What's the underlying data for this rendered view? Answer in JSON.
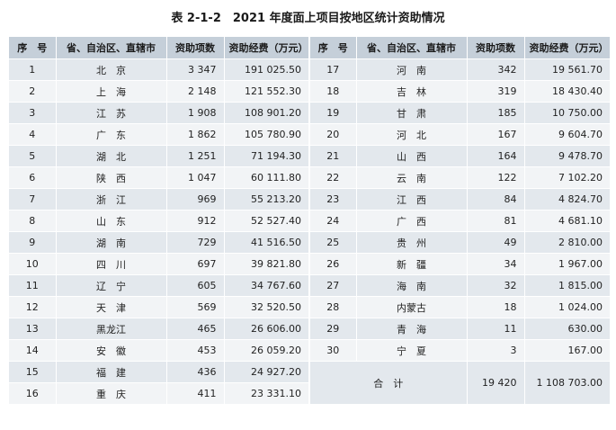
{
  "title": "表 2-1-2　2021 年度面上项目按地区统计资助情况",
  "headers": {
    "seq": "序　号",
    "province": "省、自治区、直辖市",
    "count": "资助项数",
    "funding": "资助经费（万元）"
  },
  "left_rows": [
    {
      "seq": "1",
      "province": "北　京",
      "count": "3 347",
      "funding": "191 025.50"
    },
    {
      "seq": "2",
      "province": "上　海",
      "count": "2 148",
      "funding": "121 552.30"
    },
    {
      "seq": "3",
      "province": "江　苏",
      "count": "1 908",
      "funding": "108 901.20"
    },
    {
      "seq": "4",
      "province": "广　东",
      "count": "1 862",
      "funding": "105 780.90"
    },
    {
      "seq": "5",
      "province": "湖　北",
      "count": "1 251",
      "funding": "71 194.30"
    },
    {
      "seq": "6",
      "province": "陕　西",
      "count": "1 047",
      "funding": "60 111.80"
    },
    {
      "seq": "7",
      "province": "浙　江",
      "count": "969",
      "funding": "55 213.20"
    },
    {
      "seq": "8",
      "province": "山　东",
      "count": "912",
      "funding": "52 527.40"
    },
    {
      "seq": "9",
      "province": "湖　南",
      "count": "729",
      "funding": "41 516.50"
    },
    {
      "seq": "10",
      "province": "四　川",
      "count": "697",
      "funding": "39 821.80"
    },
    {
      "seq": "11",
      "province": "辽　宁",
      "count": "605",
      "funding": "34 767.60"
    },
    {
      "seq": "12",
      "province": "天　津",
      "count": "569",
      "funding": "32 520.50"
    },
    {
      "seq": "13",
      "province": "黑龙江",
      "count": "465",
      "funding": "26 606.00"
    },
    {
      "seq": "14",
      "province": "安　徽",
      "count": "453",
      "funding": "26 059.20"
    },
    {
      "seq": "15",
      "province": "福　建",
      "count": "436",
      "funding": "24 927.20"
    },
    {
      "seq": "16",
      "province": "重　庆",
      "count": "411",
      "funding": "23 331.10"
    }
  ],
  "right_rows": [
    {
      "seq": "17",
      "province": "河　南",
      "count": "342",
      "funding": "19 561.70"
    },
    {
      "seq": "18",
      "province": "吉　林",
      "count": "319",
      "funding": "18 430.40"
    },
    {
      "seq": "19",
      "province": "甘　肃",
      "count": "185",
      "funding": "10 750.00"
    },
    {
      "seq": "20",
      "province": "河　北",
      "count": "167",
      "funding": "9 604.70"
    },
    {
      "seq": "21",
      "province": "山　西",
      "count": "164",
      "funding": "9 478.70"
    },
    {
      "seq": "22",
      "province": "云　南",
      "count": "122",
      "funding": "7 102.20"
    },
    {
      "seq": "23",
      "province": "江　西",
      "count": "84",
      "funding": "4 824.70"
    },
    {
      "seq": "24",
      "province": "广　西",
      "count": "81",
      "funding": "4 681.10"
    },
    {
      "seq": "25",
      "province": "贵　州",
      "count": "49",
      "funding": "2 810.00"
    },
    {
      "seq": "26",
      "province": "新　疆",
      "count": "34",
      "funding": "1 967.00"
    },
    {
      "seq": "27",
      "province": "海　南",
      "count": "32",
      "funding": "1 815.00"
    },
    {
      "seq": "28",
      "province": "内蒙古",
      "count": "18",
      "funding": "1 024.00"
    },
    {
      "seq": "29",
      "province": "青　海",
      "count": "11",
      "funding": "630.00"
    },
    {
      "seq": "30",
      "province": "宁　夏",
      "count": "3",
      "funding": "167.00"
    }
  ],
  "total": {
    "label": "合　计",
    "count": "19 420",
    "funding": "1 108 703.00"
  }
}
